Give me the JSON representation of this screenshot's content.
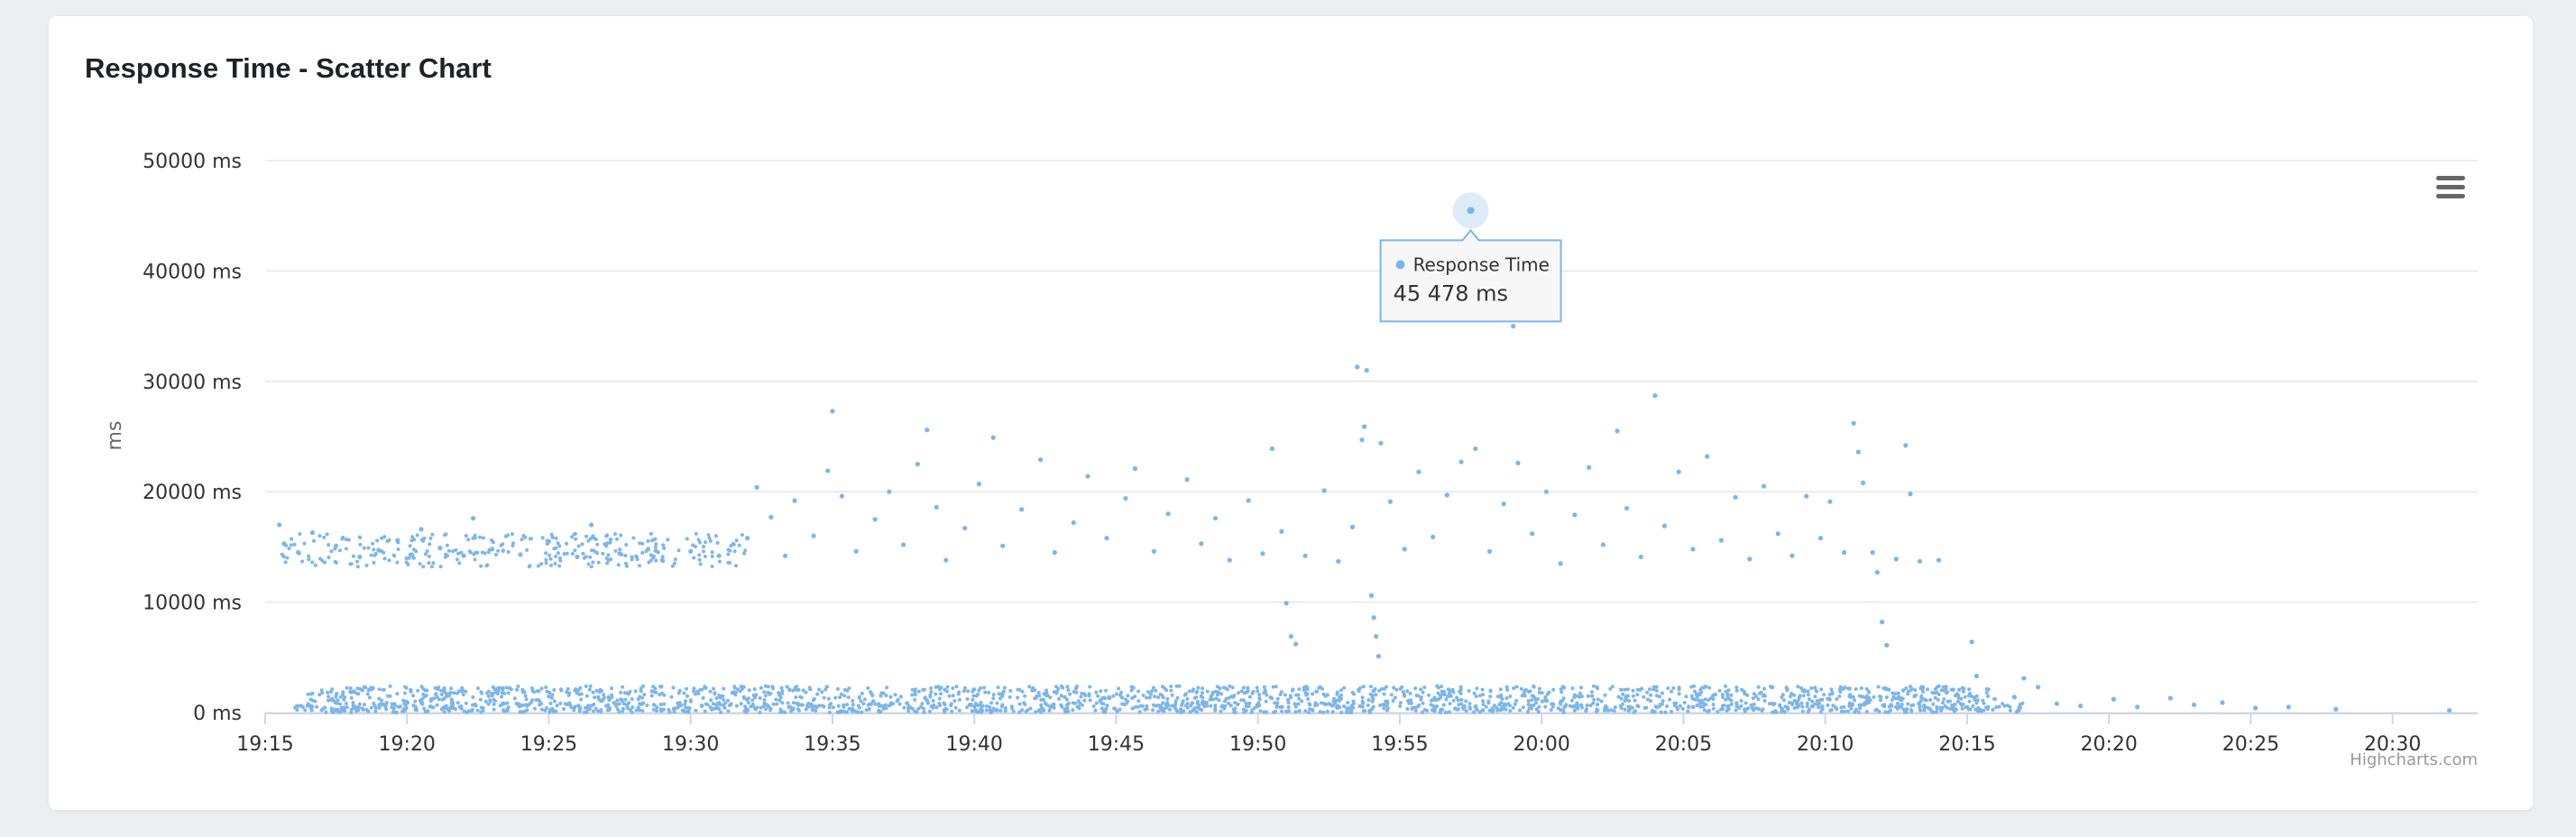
{
  "card": {
    "title": "Response Time - Scatter Chart"
  },
  "tooltip": {
    "series": "Response Time",
    "value": "45 478 ms"
  },
  "credits": "Highcharts.com",
  "menu": {
    "icon": "hamburger-menu-icon"
  },
  "colors": {
    "series": "#7cb5ec",
    "grid": "#e6e6e6",
    "axis": "#ccd6eb",
    "text": "#333333"
  },
  "chart_data": {
    "type": "scatter",
    "title": "",
    "xlabel": "",
    "ylabel": "ms",
    "xlim": [
      "19:15",
      "20:33"
    ],
    "ylim": [
      0,
      50000
    ],
    "y_ticks": [
      0,
      10000,
      20000,
      30000,
      40000,
      50000
    ],
    "y_tick_labels": [
      "0 ms",
      "10000 ms",
      "20000 ms",
      "30000 ms",
      "40000 ms",
      "50000 ms"
    ],
    "x_ticks": [
      "19:15",
      "19:20",
      "19:25",
      "19:30",
      "19:35",
      "19:40",
      "19:45",
      "19:50",
      "19:55",
      "20:00",
      "20:05",
      "20:10",
      "20:15",
      "20:20",
      "20:25",
      "20:30"
    ],
    "grid": true,
    "legend": "none",
    "series": [
      {
        "name": "Response Time",
        "color": "#7cb5ec",
        "points": [
          [
            "19:15:30",
            17000
          ],
          [
            "19:15:40",
            15300
          ],
          [
            "19:16:10",
            14500
          ],
          [
            "19:16:40",
            16300
          ],
          [
            "19:17:30",
            15100
          ],
          [
            "19:18:20",
            14100
          ],
          [
            "19:19:00",
            14700
          ],
          [
            "19:19:40",
            15600
          ],
          [
            "19:20:10",
            14300
          ],
          [
            "19:20:30",
            16600
          ],
          [
            "19:21:10",
            14900
          ],
          [
            "19:22:00",
            14200
          ],
          [
            "19:22:20",
            17600
          ],
          [
            "19:23:00",
            14800
          ],
          [
            "19:24:00",
            14300
          ],
          [
            "19:25:00",
            15500
          ],
          [
            "19:26:00",
            14100
          ],
          [
            "19:26:30",
            17000
          ],
          [
            "19:27:30",
            14400
          ],
          [
            "19:28:30",
            14800
          ],
          [
            "19:29:00",
            13800
          ],
          [
            "19:30:00",
            14600
          ],
          [
            "19:31:00",
            14200
          ],
          [
            "19:32:00",
            15800
          ],
          [
            "19:32:20",
            20400
          ],
          [
            "19:32:50",
            17700
          ],
          [
            "19:33:20",
            14200
          ],
          [
            "19:33:40",
            19200
          ],
          [
            "19:34:20",
            16000
          ],
          [
            "19:34:50",
            21900
          ],
          [
            "19:35:00",
            27300
          ],
          [
            "19:35:20",
            19600
          ],
          [
            "19:35:50",
            14600
          ],
          [
            "19:36:30",
            17500
          ],
          [
            "19:37:00",
            20000
          ],
          [
            "19:37:30",
            15200
          ],
          [
            "19:38:00",
            22500
          ],
          [
            "19:38:20",
            25600
          ],
          [
            "19:38:40",
            18600
          ],
          [
            "19:39:00",
            13800
          ],
          [
            "19:39:40",
            16700
          ],
          [
            "19:40:10",
            20700
          ],
          [
            "19:40:40",
            24900
          ],
          [
            "19:41:00",
            15100
          ],
          [
            "19:41:40",
            18400
          ],
          [
            "19:42:20",
            22900
          ],
          [
            "19:42:50",
            14500
          ],
          [
            "19:43:30",
            17200
          ],
          [
            "19:44:00",
            21400
          ],
          [
            "19:44:40",
            15800
          ],
          [
            "19:45:20",
            19400
          ],
          [
            "19:45:40",
            22100
          ],
          [
            "19:46:20",
            14600
          ],
          [
            "19:46:50",
            18000
          ],
          [
            "19:47:30",
            21100
          ],
          [
            "19:48:00",
            15300
          ],
          [
            "19:48:30",
            17600
          ],
          [
            "19:49:00",
            13800
          ],
          [
            "19:49:40",
            19200
          ],
          [
            "19:50:10",
            14400
          ],
          [
            "19:50:30",
            23900
          ],
          [
            "19:50:50",
            16400
          ],
          [
            "19:51:00",
            9900
          ],
          [
            "19:51:10",
            6900
          ],
          [
            "19:51:20",
            6200
          ],
          [
            "19:51:40",
            14200
          ],
          [
            "19:52:20",
            20100
          ],
          [
            "19:52:50",
            13700
          ],
          [
            "19:53:20",
            16800
          ],
          [
            "19:53:30",
            31300
          ],
          [
            "19:53:40",
            24700
          ],
          [
            "19:53:45",
            25900
          ],
          [
            "19:53:50",
            31000
          ],
          [
            "19:54:00",
            10600
          ],
          [
            "19:54:05",
            8600
          ],
          [
            "19:54:10",
            6900
          ],
          [
            "19:54:15",
            5100
          ],
          [
            "19:54:20",
            24400
          ],
          [
            "19:54:40",
            19100
          ],
          [
            "19:55:10",
            14800
          ],
          [
            "19:55:40",
            21800
          ],
          [
            "19:56:10",
            15900
          ],
          [
            "19:56:40",
            19700
          ],
          [
            "19:57:10",
            22700
          ],
          [
            "19:57:30",
            45478
          ],
          [
            "19:57:40",
            23900
          ],
          [
            "19:58:10",
            14600
          ],
          [
            "19:58:40",
            18900
          ],
          [
            "19:59:00",
            35000
          ],
          [
            "19:59:10",
            22600
          ],
          [
            "19:59:40",
            16200
          ],
          [
            "20:00:10",
            20000
          ],
          [
            "20:00:40",
            13500
          ],
          [
            "20:01:10",
            17900
          ],
          [
            "20:01:40",
            22200
          ],
          [
            "20:02:10",
            15200
          ],
          [
            "20:02:40",
            25500
          ],
          [
            "20:03:00",
            18500
          ],
          [
            "20:03:30",
            14100
          ],
          [
            "20:04:00",
            28700
          ],
          [
            "20:04:20",
            16900
          ],
          [
            "20:04:50",
            21800
          ],
          [
            "20:05:20",
            14800
          ],
          [
            "20:05:50",
            23200
          ],
          [
            "20:06:20",
            15600
          ],
          [
            "20:06:50",
            19500
          ],
          [
            "20:07:20",
            13900
          ],
          [
            "20:07:50",
            20500
          ],
          [
            "20:08:20",
            16200
          ],
          [
            "20:08:50",
            14200
          ],
          [
            "20:09:20",
            19600
          ],
          [
            "20:09:50",
            15800
          ],
          [
            "20:10:10",
            19100
          ],
          [
            "20:10:40",
            14500
          ],
          [
            "20:11:00",
            26200
          ],
          [
            "20:11:10",
            23600
          ],
          [
            "20:11:20",
            20800
          ],
          [
            "20:11:40",
            14500
          ],
          [
            "20:11:50",
            12700
          ],
          [
            "20:12:00",
            8200
          ],
          [
            "20:12:10",
            6100
          ],
          [
            "20:12:30",
            13900
          ],
          [
            "20:12:50",
            24200
          ],
          [
            "20:13:00",
            19800
          ],
          [
            "20:13:20",
            13700
          ],
          [
            "20:14:00",
            13800
          ],
          [
            "20:15:10",
            6400
          ],
          [
            "20:15:20",
            3300
          ],
          [
            "20:16:40",
            1400
          ],
          [
            "20:17:00",
            3100
          ],
          [
            "20:17:30",
            2300
          ],
          [
            "20:18:10",
            800
          ],
          [
            "20:19:00",
            600
          ],
          [
            "20:20:10",
            1200
          ],
          [
            "20:21:00",
            500
          ],
          [
            "20:22:10",
            1300
          ],
          [
            "20:23:00",
            700
          ],
          [
            "20:24:00",
            900
          ],
          [
            "20:25:10",
            400
          ],
          [
            "20:26:20",
            500
          ],
          [
            "20:28:00",
            300
          ],
          [
            "20:32:00",
            200
          ]
        ],
        "dense_bands": [
          {
            "from": "19:15:30",
            "to": "19:32:00",
            "y_range": [
              13200,
              16200
            ]
          },
          {
            "from": "19:16:30",
            "to": "20:16:00",
            "y_range": [
              1000,
              2400
            ]
          },
          {
            "from": "19:16:00",
            "to": "20:17:00",
            "y_range": [
              0,
              900
            ]
          }
        ]
      }
    ],
    "highlighted_point": {
      "x": "19:57:30",
      "y": 45478
    }
  }
}
